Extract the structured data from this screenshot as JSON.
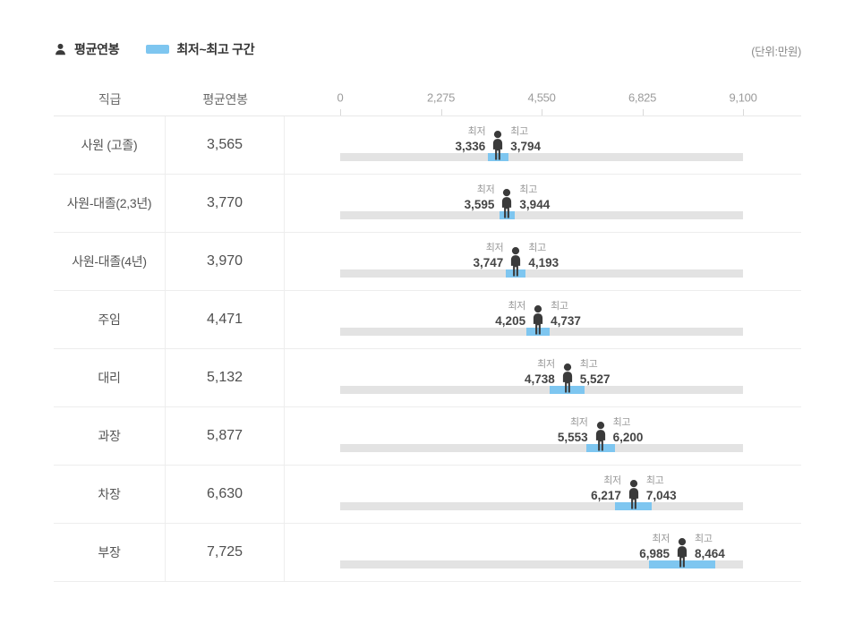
{
  "legend": {
    "avg_label": "평균연봉",
    "range_label": "최저~최고 구간",
    "unit_note": "(단위:만원)"
  },
  "table_header": {
    "col_grade": "직급",
    "col_avg": "평균연봉"
  },
  "labels": {
    "min_caption": "최저",
    "max_caption": "최고"
  },
  "colors": {
    "accent_blue": "#7EC6F0",
    "track_gray": "#E3E3E3",
    "person_dark": "#3A3A3A"
  },
  "chart_data": {
    "type": "bar",
    "unit": "만원",
    "legend": [
      "평균연봉",
      "최저~최고 구간"
    ],
    "axis": {
      "min": 0,
      "max": 9100,
      "ticks": [
        0,
        2275,
        4550,
        6825,
        9100
      ],
      "tick_labels": [
        "0",
        "2,275",
        "4,550",
        "6,825",
        "9,100"
      ]
    },
    "rows": [
      {
        "grade": "사원 (고졸)",
        "avg": 3565,
        "avg_label": "3,565",
        "min": 3336,
        "min_label": "3,336",
        "max": 3794,
        "max_label": "3,794"
      },
      {
        "grade": "사원-대졸(2,3년)",
        "avg": 3770,
        "avg_label": "3,770",
        "min": 3595,
        "min_label": "3,595",
        "max": 3944,
        "max_label": "3,944"
      },
      {
        "grade": "사원-대졸(4년)",
        "avg": 3970,
        "avg_label": "3,970",
        "min": 3747,
        "min_label": "3,747",
        "max": 4193,
        "max_label": "4,193"
      },
      {
        "grade": "주임",
        "avg": 4471,
        "avg_label": "4,471",
        "min": 4205,
        "min_label": "4,205",
        "max": 4737,
        "max_label": "4,737"
      },
      {
        "grade": "대리",
        "avg": 5132,
        "avg_label": "5,132",
        "min": 4738,
        "min_label": "4,738",
        "max": 5527,
        "max_label": "5,527"
      },
      {
        "grade": "과장",
        "avg": 5877,
        "avg_label": "5,877",
        "min": 5553,
        "min_label": "5,553",
        "max": 6200,
        "max_label": "6,200"
      },
      {
        "grade": "차장",
        "avg": 6630,
        "avg_label": "6,630",
        "min": 6217,
        "min_label": "6,217",
        "max": 7043,
        "max_label": "7,043"
      },
      {
        "grade": "부장",
        "avg": 7725,
        "avg_label": "7,725",
        "min": 6985,
        "min_label": "6,985",
        "max": 8464,
        "max_label": "8,464"
      }
    ]
  }
}
